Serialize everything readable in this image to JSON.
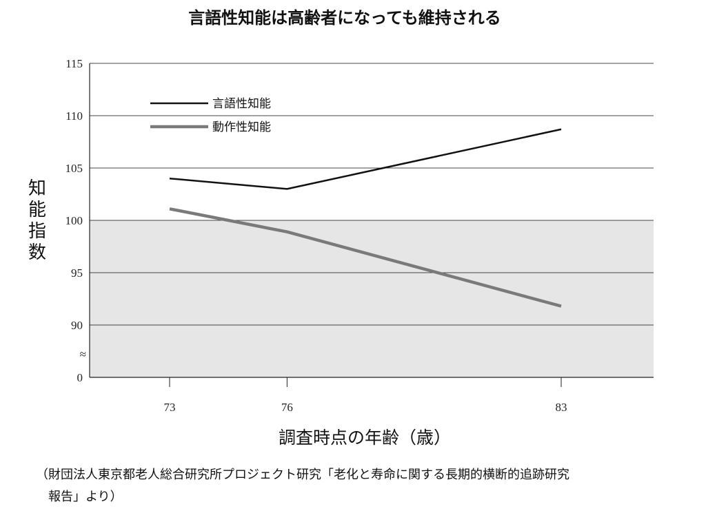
{
  "chart_data": {
    "type": "line",
    "title": "言語性知能は高齢者になっても維持される",
    "xlabel": "調査時点の年齢（歳）",
    "ylabel": "知能指数",
    "x": [
      73,
      76,
      83
    ],
    "y_ticks": [
      "115",
      "110",
      "105",
      "100",
      "95",
      "90",
      "0"
    ],
    "x_ticks": [
      "73",
      "76",
      "83"
    ],
    "axis_break_symbol": "≈",
    "series": [
      {
        "name": "言語性知能",
        "values": [
          104.0,
          103.0,
          108.7
        ],
        "color": "#111111"
      },
      {
        "name": "動作性知能",
        "values": [
          101.1,
          98.9,
          91.8
        ],
        "color": "#7a7a7a"
      }
    ],
    "shaded_band": {
      "from": 0,
      "to": 100,
      "color": "#e6e6e6"
    },
    "grid": true,
    "legend_position": "top-left"
  },
  "source_note": {
    "line1": "（財団法人東京都老人総合研究所プロジェクト研究「老化と寿命に関する長期的横断的追跡研究",
    "line2": "報告」より）"
  }
}
